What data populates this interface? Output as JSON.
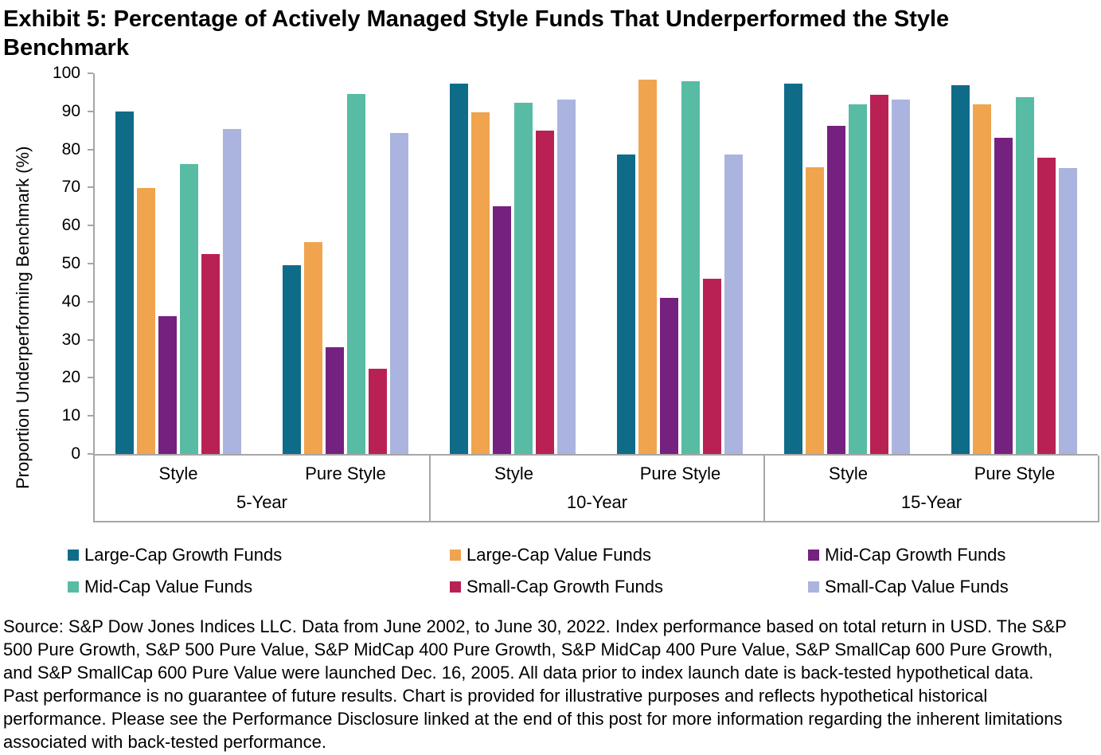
{
  "title": "Exhibit 5: Percentage of Actively Managed Style Funds That Underperformed the Style Benchmark",
  "chart_data": {
    "type": "bar",
    "title": "Exhibit 5: Percentage of Actively Managed Style Funds That Underperformed the Style Benchmark",
    "ylabel": "Proportion Underperforming Benchmark (%)",
    "xlabel": "",
    "ylim": [
      0,
      100
    ],
    "yticks": [
      0,
      10,
      20,
      30,
      40,
      50,
      60,
      70,
      80,
      90,
      100
    ],
    "grid": false,
    "legend_position": "bottom",
    "axis_color": "#a6a6a6",
    "periods": [
      {
        "label": "5-Year",
        "categories": [
          "Style",
          "Pure Style"
        ]
      },
      {
        "label": "10-Year",
        "categories": [
          "Style",
          "Pure Style"
        ]
      },
      {
        "label": "15-Year",
        "categories": [
          "Style",
          "Pure Style"
        ]
      }
    ],
    "category_order": [
      "5-Year Style",
      "5-Year Pure Style",
      "10-Year Style",
      "10-Year Pure Style",
      "15-Year Style",
      "15-Year Pure Style"
    ],
    "series": [
      {
        "name": "Large-Cap Growth Funds",
        "color": "#0f6c89",
        "values": [
          90.0,
          49.6,
          97.3,
          78.7,
          97.3,
          96.9
        ]
      },
      {
        "name": "Large-Cap Value Funds",
        "color": "#f0a44e",
        "values": [
          69.8,
          55.7,
          89.8,
          98.4,
          75.4,
          91.9
        ]
      },
      {
        "name": "Mid-Cap Growth Funds",
        "color": "#75217f",
        "values": [
          36.3,
          28.0,
          65.0,
          41.0,
          86.2,
          83.0
        ]
      },
      {
        "name": "Mid-Cap Value Funds",
        "color": "#58bca4",
        "values": [
          76.1,
          94.6,
          92.3,
          97.9,
          91.8,
          93.8
        ]
      },
      {
        "name": "Small-Cap Growth Funds",
        "color": "#b92155",
        "values": [
          52.5,
          22.3,
          85.0,
          46.1,
          94.3,
          77.9
        ]
      },
      {
        "name": "Small-Cap Value Funds",
        "color": "#aab4df",
        "values": [
          85.4,
          84.4,
          93.2,
          78.7,
          93.2,
          75.1
        ]
      }
    ]
  },
  "source_text": "Source: S&P Dow Jones Indices LLC. Data from June 2002, to June 30, 2022. Index performance based on total return in USD. The S&P 500 Pure Growth, S&P 500 Pure Value, S&P MidCap 400 Pure Growth, S&P MidCap 400 Pure Value, S&P SmallCap 600 Pure Growth, and S&P SmallCap 600 Pure Value were launched Dec. 16, 2005. All data prior to index launch date is back-tested hypothetical data. Past performance is no guarantee of future results. Chart is provided for illustrative purposes and reflects hypothetical historical performance. Please see the Performance Disclosure linked at the end of this post for more information regarding the inherent limitations associated with back-tested performance."
}
